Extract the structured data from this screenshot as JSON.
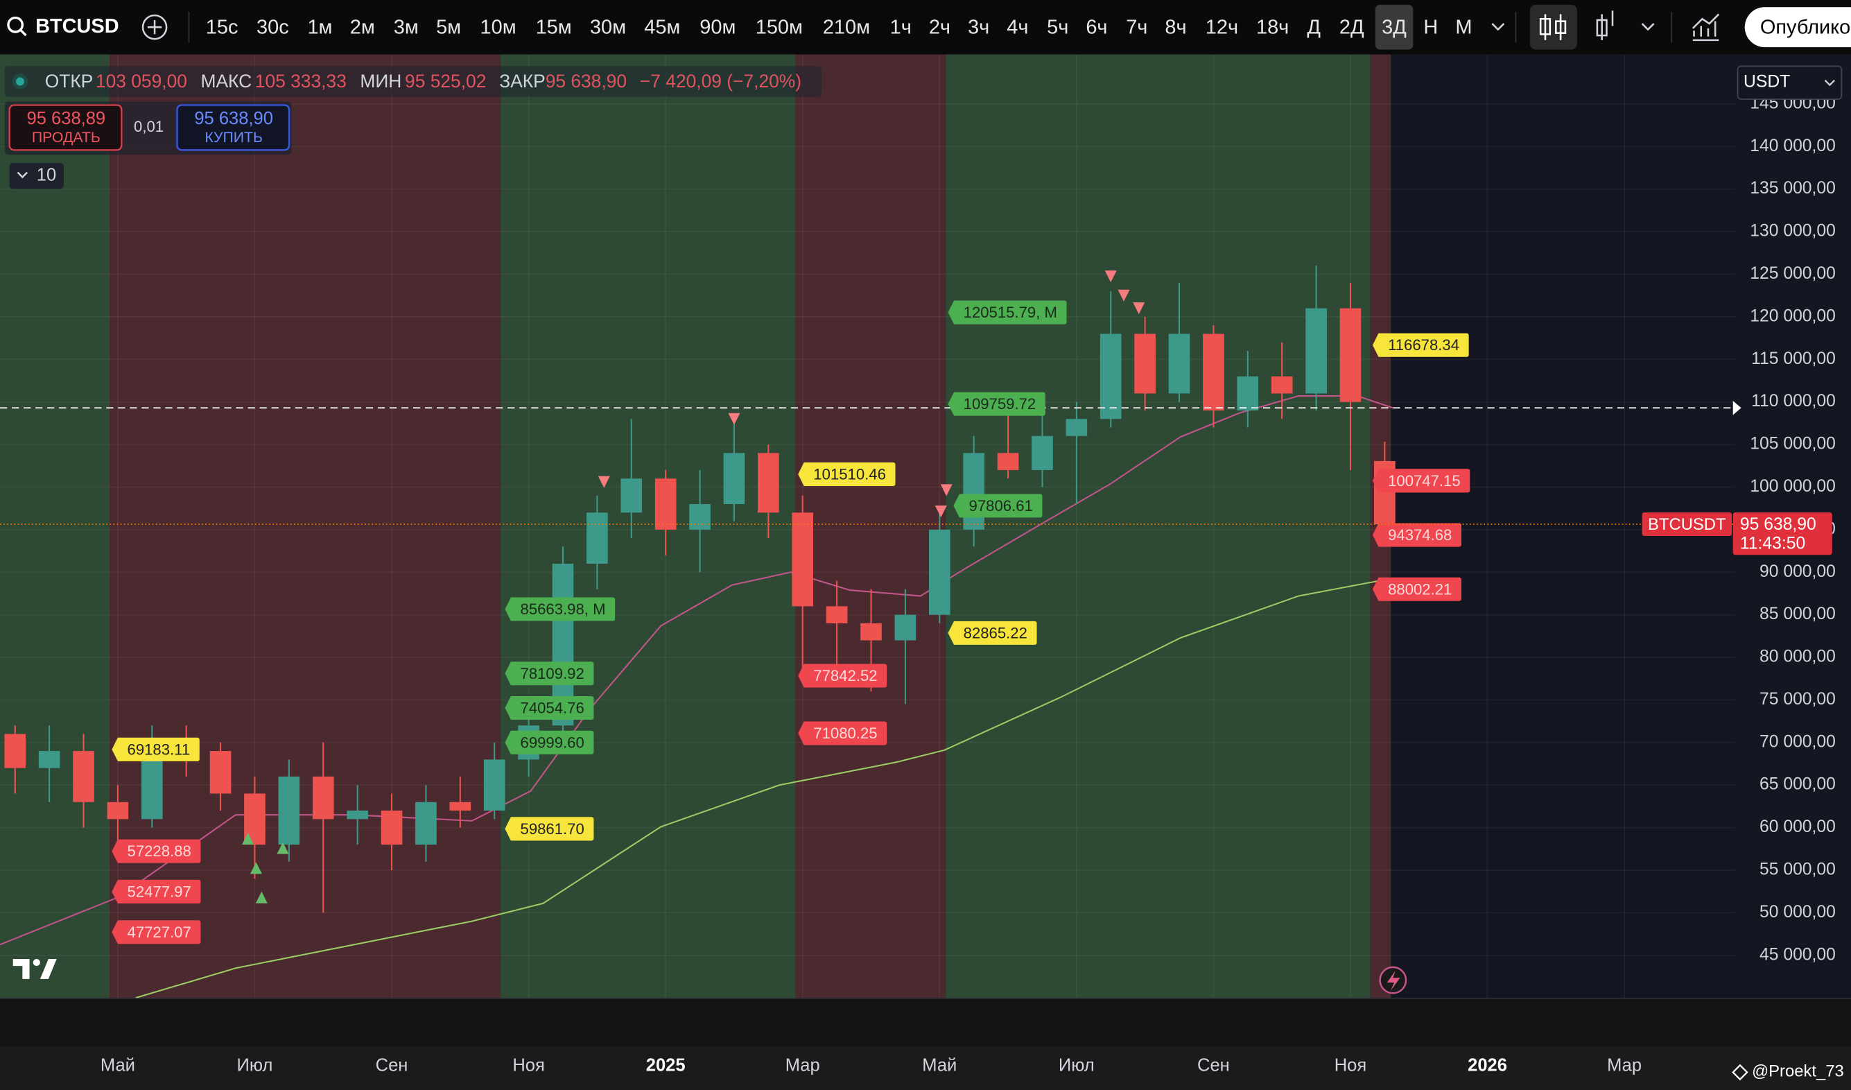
{
  "toolbar": {
    "symbol": "BTCUSD",
    "intervals": [
      "15с",
      "30с",
      "1м",
      "2м",
      "3м",
      "5м",
      "10м",
      "15м",
      "30м",
      "45м",
      "90м",
      "150м",
      "210м",
      "1ч",
      "2ч",
      "3ч",
      "4ч",
      "5ч",
      "6ч",
      "7ч",
      "8ч",
      "12ч",
      "18ч",
      "Д",
      "2Д",
      "3Д",
      "Н",
      "М"
    ],
    "active_interval": 25,
    "publish": "Опублико"
  },
  "legend": {
    "open_label": "ОТКР",
    "open": "103 059,00",
    "high_label": "МАКС",
    "high": "105 333,33",
    "low_label": "МИН",
    "low": "95 525,02",
    "close_label": "ЗАКР",
    "close": "95 638,90",
    "change": "−7 420,09 (−7,20%)"
  },
  "trade": {
    "sell_price": "95 638,89",
    "sell": "ПРОДАТЬ",
    "spread": "0,01",
    "buy_price": "95 638,90",
    "buy": "КУПИТЬ",
    "quantity": "10"
  },
  "currency": "USDT",
  "price_badge": {
    "symbol": "BTCUSDT",
    "price": "95 638,90",
    "countdown": "11:43:50"
  },
  "watermark": "@Proekt_73",
  "chart_data": {
    "type": "candlestick",
    "x": [
      -1.5,
      -1,
      -0.5,
      0,
      0.5,
      1,
      1.5,
      2,
      2.5,
      3,
      3.5,
      4,
      4.5,
      5,
      5.5,
      6,
      6.5,
      7,
      7.5,
      8,
      8.5,
      9,
      9.5,
      10,
      10.5,
      11,
      11.5,
      12,
      12.5,
      13,
      13.5,
      14,
      14.5,
      15,
      15.5,
      16,
      16.5,
      17,
      17.5,
      18,
      18.5
    ],
    "open": [
      71000,
      67000,
      69000,
      63000,
      61000,
      70000,
      69000,
      64000,
      58000,
      66000,
      61000,
      62000,
      58000,
      63000,
      62000,
      68000,
      72000,
      91000,
      97000,
      101000,
      95000,
      98000,
      104000,
      97000,
      86000,
      84000,
      82000,
      85000,
      95000,
      104000,
      102000,
      106000,
      108000,
      118000,
      111000,
      118000,
      109000,
      113000,
      111000,
      121000,
      103059
    ],
    "high": [
      72000,
      72000,
      71000,
      65000,
      72000,
      72000,
      70000,
      66000,
      68000,
      70000,
      65000,
      64000,
      65000,
      66000,
      70000,
      74000,
      93000,
      99000,
      108000,
      102000,
      102000,
      108000,
      105000,
      99000,
      89000,
      88000,
      88000,
      97000,
      106000,
      111000,
      110000,
      110000,
      123000,
      120000,
      124000,
      119000,
      116000,
      117000,
      126000,
      124000,
      105333.33
    ],
    "low": [
      64000,
      63000,
      60000,
      57000,
      60000,
      66000,
      62000,
      54000,
      56000,
      50000,
      58000,
      55000,
      56000,
      60000,
      61000,
      66000,
      70000,
      88000,
      94000,
      92000,
      90000,
      96000,
      94000,
      78000,
      79000,
      76000,
      74500,
      84000,
      93000,
      101000,
      100000,
      98000,
      107000,
      109000,
      110000,
      107000,
      107000,
      108000,
      109000,
      102000,
      95525.02
    ],
    "close": [
      67000,
      69000,
      63000,
      61000,
      70000,
      69000,
      64000,
      58000,
      66000,
      61000,
      62000,
      58000,
      63000,
      62000,
      68000,
      72000,
      91000,
      97000,
      101000,
      95000,
      98000,
      104000,
      97000,
      86000,
      84000,
      82000,
      85000,
      95000,
      104000,
      102000,
      106000,
      108000,
      118000,
      111000,
      118000,
      109000,
      113000,
      111000,
      121000,
      110000,
      95638.9
    ],
    "up_color": "#3d9a8b",
    "down_color": "#ef5350",
    "ylim": [
      40000,
      150000
    ],
    "yticks": [
      {
        "value": 45000,
        "label": "45 000,00"
      },
      {
        "value": 50000,
        "label": "50 000,00"
      },
      {
        "value": 55000,
        "label": "55 000,00"
      },
      {
        "value": 60000,
        "label": "60 000,00"
      },
      {
        "value": 65000,
        "label": "65 000,00"
      },
      {
        "value": 70000,
        "label": "70 000,00"
      },
      {
        "value": 75000,
        "label": "75 000,00"
      },
      {
        "value": 80000,
        "label": "80 000,00"
      },
      {
        "value": 85000,
        "label": "85 000,00"
      },
      {
        "value": 90000,
        "label": "90 000,00"
      },
      {
        "value": 95000,
        "label": "95 000,00"
      },
      {
        "value": 100000,
        "label": "100 000,00"
      },
      {
        "value": 105000,
        "label": "105 000,00"
      },
      {
        "value": 110000,
        "label": "110 000,00"
      },
      {
        "value": 115000,
        "label": "115 000,00"
      },
      {
        "value": 120000,
        "label": "120 000,00"
      },
      {
        "value": 125000,
        "label": "125 000,00"
      },
      {
        "value": 130000,
        "label": "130 000,00"
      },
      {
        "value": 135000,
        "label": "135 000,00"
      },
      {
        "value": 140000,
        "label": "140 000,00"
      },
      {
        "value": 145000,
        "label": "145 000,00"
      }
    ],
    "xlim": [
      -1.72,
      23.62
    ],
    "xticks": [
      {
        "value": 0,
        "label": "Май"
      },
      {
        "value": 2,
        "label": "Июл"
      },
      {
        "value": 4,
        "label": "Сен"
      },
      {
        "value": 6,
        "label": "Ноя"
      },
      {
        "value": 8,
        "label": "2025"
      },
      {
        "value": 10,
        "label": "Мар"
      },
      {
        "value": 12,
        "label": "Май"
      },
      {
        "value": 14,
        "label": "Июл"
      },
      {
        "value": 16,
        "label": "Сен"
      },
      {
        "value": 18,
        "label": "Ноя"
      },
      {
        "value": 20,
        "label": "2026"
      },
      {
        "value": 22,
        "label": "Мар"
      }
    ],
    "grid": true,
    "zones": [
      {
        "from": -1.72,
        "to": -0.12,
        "color": "#2e4934"
      },
      {
        "from": -0.12,
        "to": 5.59,
        "color": "#4b2a2f"
      },
      {
        "from": 5.59,
        "to": 9.9,
        "color": "#2e4934"
      },
      {
        "from": 9.9,
        "to": 12.09,
        "color": "#4b2a2f"
      },
      {
        "from": 12.09,
        "to": 18.29,
        "color": "#2e4934"
      },
      {
        "from": 18.29,
        "to": 18.59,
        "color": "#4b2a2f"
      }
    ],
    "lines": [
      {
        "color": "#c2558a",
        "x": [
          -1.72,
          0,
          1.72,
          3.45,
          5.17,
          6.03,
          6.9,
          7.93,
          8.97,
          9.83,
          10.69,
          11.72,
          12.41,
          13.45,
          14.48,
          15.52,
          16.38,
          17.24,
          18.1,
          18.62
        ],
        "values": [
          46250,
          51800,
          61500,
          61500,
          60800,
          64300,
          74000,
          83700,
          88500,
          90000,
          87900,
          87200,
          90600,
          95500,
          100300,
          105900,
          108700,
          110700,
          110700,
          109300
        ]
      },
      {
        "color": "#9ccc65",
        "x": [
          0.26,
          1.72,
          3.45,
          5.17,
          6.21,
          7.93,
          9.66,
          11.38,
          12.07,
          13.79,
          15.52,
          17.24,
          18.62
        ],
        "values": [
          40000,
          43500,
          46250,
          49000,
          51100,
          60100,
          65000,
          67700,
          69100,
          75400,
          82300,
          87200,
          89300
        ]
      }
    ],
    "hline": {
      "value": 109300,
      "color": "#ffffff"
    },
    "last_price": {
      "value": 95638.9,
      "color": "#f57c00"
    },
    "annotations": [
      {
        "x": 12.21,
        "value": 120515.79,
        "label": "120515.79, M",
        "color": "#4caf50"
      },
      {
        "x": 12.21,
        "value": 109759.72,
        "label": "109759.72",
        "color": "#4caf50"
      },
      {
        "x": 12.29,
        "value": 97806.61,
        "label": "97806.61",
        "color": "#4caf50"
      },
      {
        "x": 12.21,
        "value": 82865.22,
        "label": "82865.22",
        "color": "#f7e53b"
      },
      {
        "x": 10.02,
        "value": 101510.46,
        "label": "101510.46",
        "color": "#f7e53b"
      },
      {
        "x": 10.02,
        "value": 77842.52,
        "label": "77842.52",
        "color": "#f0464f"
      },
      {
        "x": 10.02,
        "value": 71080.25,
        "label": "71080.25",
        "color": "#f0464f"
      },
      {
        "x": 5.74,
        "value": 85663.98,
        "label": "85663.98, M",
        "color": "#4caf50"
      },
      {
        "x": 5.74,
        "value": 78109.92,
        "label": "78109.92",
        "color": "#4caf50"
      },
      {
        "x": 5.74,
        "value": 74054.76,
        "label": "74054.76",
        "color": "#4caf50"
      },
      {
        "x": 5.74,
        "value": 69999.6,
        "label": "69999.60",
        "color": "#4caf50"
      },
      {
        "x": 5.74,
        "value": 59861.7,
        "label": "59861.70",
        "color": "#f7e53b"
      },
      {
        "x": 0,
        "value": 69183.11,
        "label": "69183.11",
        "color": "#f7e53b"
      },
      {
        "x": 0,
        "value": 57228.88,
        "label": "57228.88",
        "color": "#f0464f"
      },
      {
        "x": 0,
        "value": 52477.97,
        "label": "52477.97",
        "color": "#f0464f"
      },
      {
        "x": 0,
        "value": 47727.07,
        "label": "47727.07",
        "color": "#f0464f"
      },
      {
        "x": 18.41,
        "value": 116678.34,
        "label": "116678.34",
        "color": "#f7e53b"
      },
      {
        "x": 18.41,
        "value": 100747.15,
        "label": "100747.15",
        "color": "#f0464f"
      },
      {
        "x": 18.41,
        "value": 94374.68,
        "label": "94374.68",
        "color": "#f0464f"
      },
      {
        "x": 18.41,
        "value": 88002.21,
        "label": "88002.21",
        "color": "#f0464f"
      }
    ],
    "markers": [
      {
        "x": 9.0,
        "value": 108000,
        "dir": "down",
        "color": "#f77c80"
      },
      {
        "x": 7.1,
        "value": 100600,
        "dir": "down",
        "color": "#f77c80"
      },
      {
        "x": 14.5,
        "value": 124750,
        "dir": "down",
        "color": "#f77c80"
      },
      {
        "x": 14.69,
        "value": 122500,
        "dir": "down",
        "color": "#f77c80"
      },
      {
        "x": 14.91,
        "value": 121000,
        "dir": "down",
        "color": "#f77c80"
      },
      {
        "x": 12.1,
        "value": 99640,
        "dir": "down",
        "color": "#f77c80"
      },
      {
        "x": 12.02,
        "value": 97140,
        "dir": "down",
        "color": "#f77c80"
      },
      {
        "x": 1.9,
        "value": 58700,
        "dir": "up",
        "color": "#66bb6a"
      },
      {
        "x": 2.02,
        "value": 55250,
        "dir": "up",
        "color": "#66bb6a"
      },
      {
        "x": 2.1,
        "value": 51800,
        "dir": "up",
        "color": "#66bb6a"
      },
      {
        "x": 2.41,
        "value": 57600,
        "dir": "up",
        "color": "#66bb6a"
      }
    ]
  }
}
